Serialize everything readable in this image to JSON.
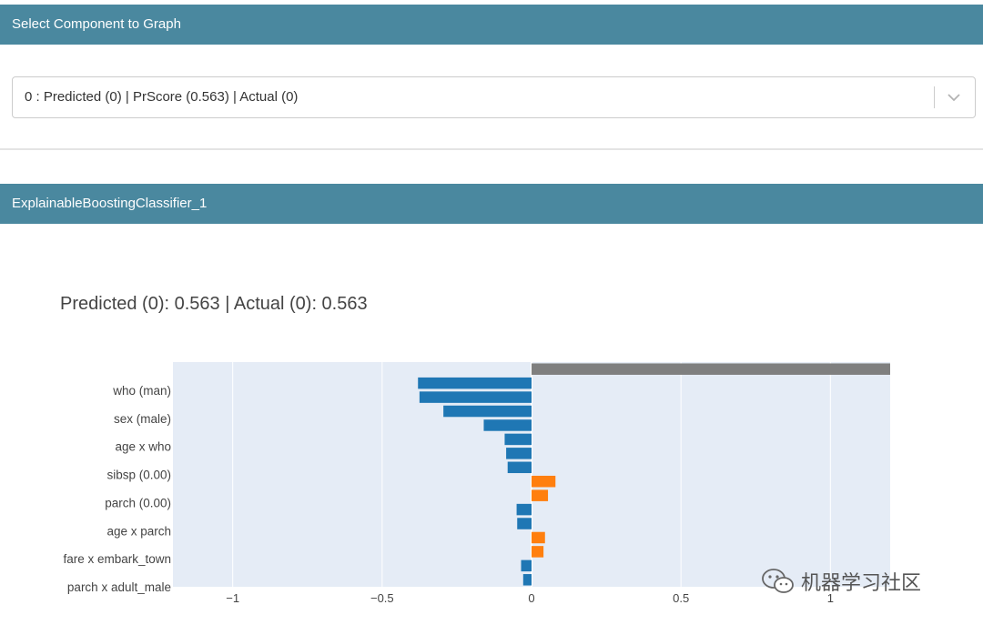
{
  "selector": {
    "header": "Select Component to Graph",
    "selected": "0 : Predicted (0) | PrScore (0.563) | Actual (0)"
  },
  "panel": {
    "header": "ExplainableBoostingClassifier_1"
  },
  "chart_data": {
    "type": "bar",
    "orientation": "horizontal",
    "title": "Predicted (0): 0.563 | Actual (0): 0.563",
    "xlim": [
      -1.2,
      1.2
    ],
    "x_ticks": [
      "−1",
      "−0.5",
      "0",
      "0.5",
      "1"
    ],
    "x_tick_values": [
      -1,
      -0.5,
      0,
      0.5,
      1
    ],
    "y_tick_labels": [
      "who (man)",
      "sex (male)",
      "age x who",
      "sibsp (0.00)",
      "parch (0.00)",
      "age x parch",
      "fare x embark_town",
      "parch x adult_male"
    ],
    "grid": true,
    "colors": {
      "negative": "#1f77b4",
      "positive": "#ff7f0e",
      "intercept": "#7f7f7f",
      "plot_bg": "#e5ecf6"
    },
    "bars": [
      {
        "value": 1.2,
        "kind": "intercept"
      },
      {
        "value": -0.38
      },
      {
        "value": -0.375
      },
      {
        "value": -0.295
      },
      {
        "value": -0.16
      },
      {
        "value": -0.09
      },
      {
        "value": -0.085
      },
      {
        "value": -0.08
      },
      {
        "value": 0.08
      },
      {
        "value": 0.055
      },
      {
        "value": -0.05
      },
      {
        "value": -0.048
      },
      {
        "value": 0.045
      },
      {
        "value": 0.04
      },
      {
        "value": -0.035
      },
      {
        "value": -0.028
      }
    ]
  },
  "watermark": {
    "text": "机器学习社区",
    "icon": "wechat-icon"
  }
}
